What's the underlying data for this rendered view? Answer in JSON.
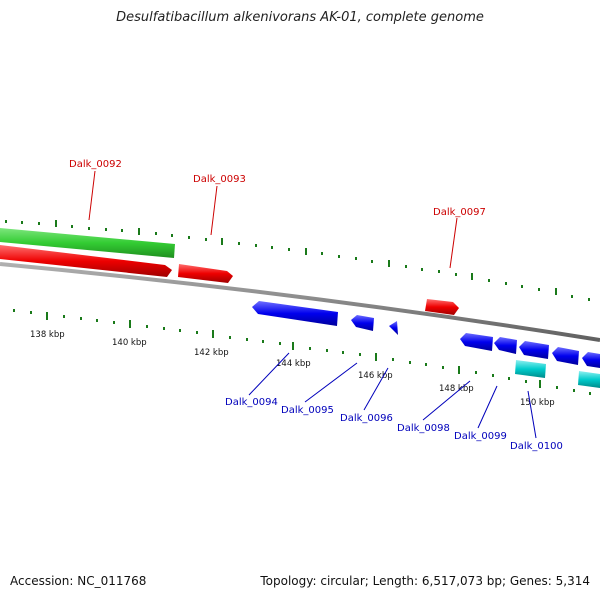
{
  "title": "Desulfatibacillum alkenivorans AK-01, complete genome",
  "footer": {
    "accession": "Accession: NC_011768",
    "summary": "Topology: circular; Length: 6,517,073 bp; Genes: 5,314"
  },
  "colors": {
    "forward_gene": "#ee0000",
    "forward_label": "#cc0000",
    "reverse_gene": "#0000ee",
    "reverse_label": "#0000bb",
    "green_feature": "#33cc33",
    "cyan_feature": "#00cccc",
    "backbone": "#808080",
    "tick": "#1a7a1a"
  },
  "scale_labels": [
    "138 kbp",
    "140 kbp",
    "142 kbp",
    "144 kbp",
    "146 kbp",
    "148 kbp",
    "150 kbp"
  ],
  "gene_labels": {
    "forward": [
      "Dalk_0092",
      "Dalk_0093",
      "Dalk_0097"
    ],
    "reverse": [
      "Dalk_0094",
      "Dalk_0095",
      "Dalk_0096",
      "Dalk_0098",
      "Dalk_0099",
      "Dalk_0100"
    ]
  }
}
